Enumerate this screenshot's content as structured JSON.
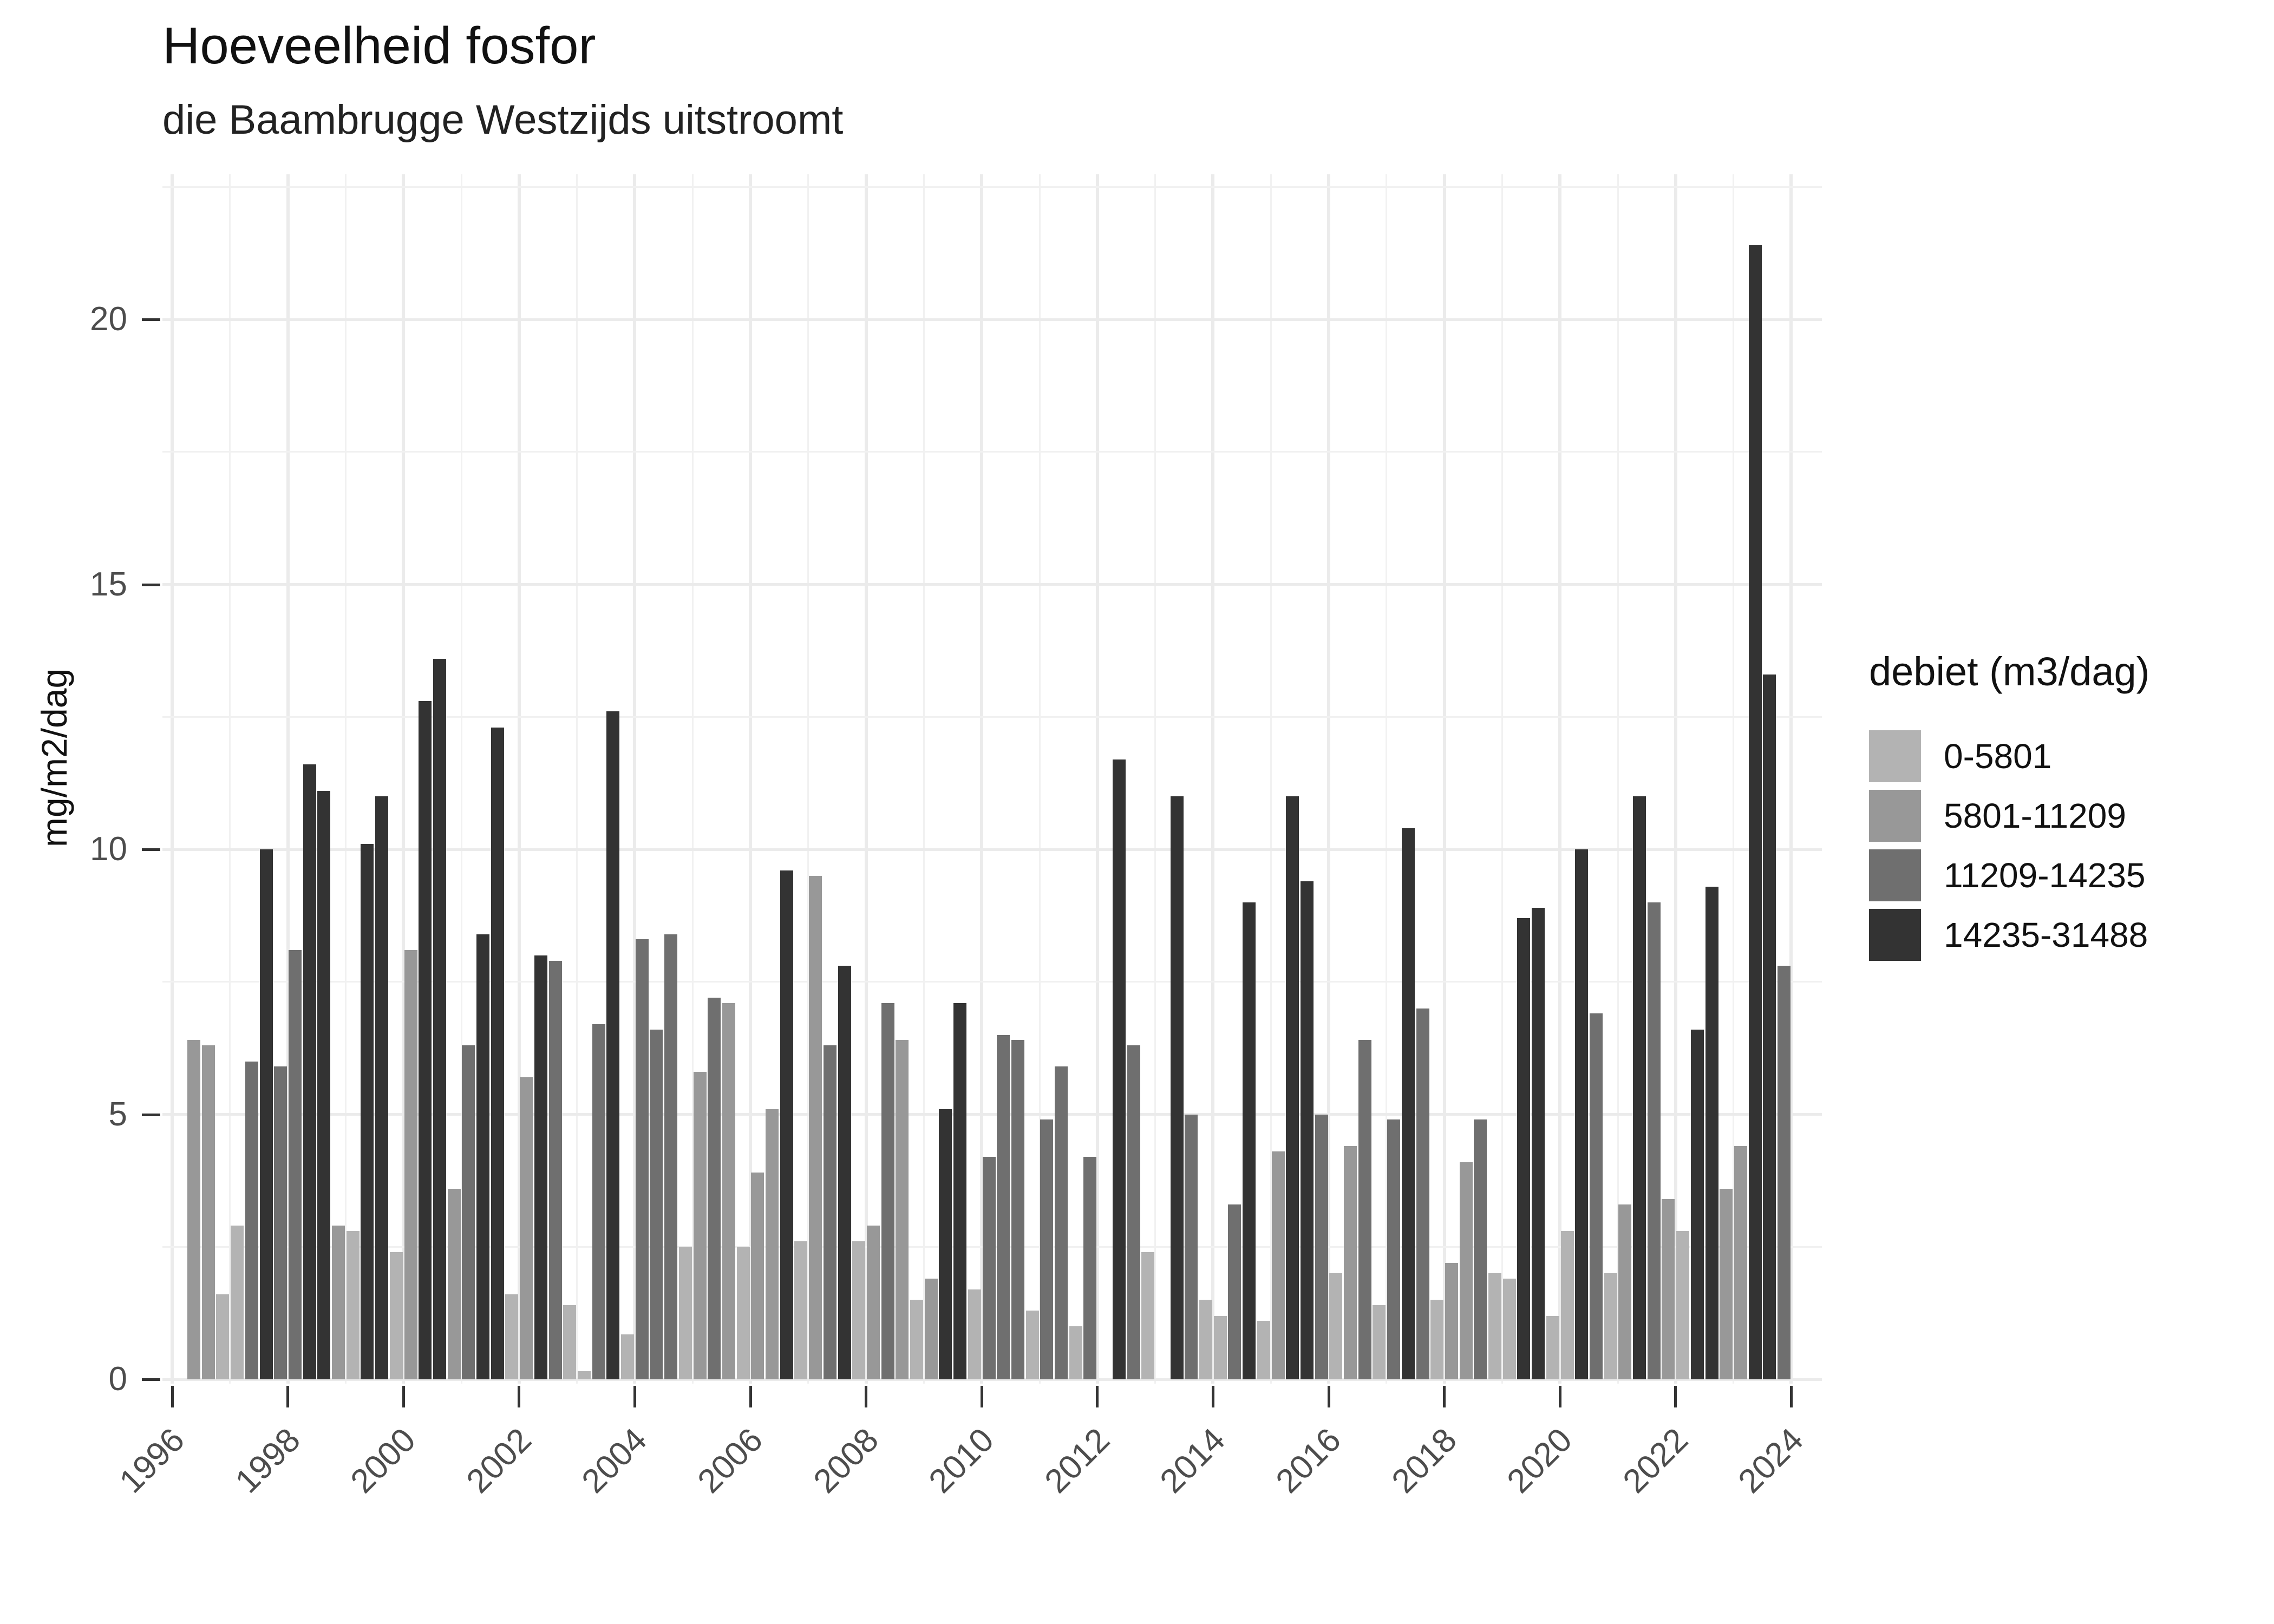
{
  "title": "Hoeveelheid fosfor",
  "subtitle": "die Baambrugge Westzijds uitstroomt",
  "y_axis_title": "mg/m2/dag",
  "legend": {
    "title": "debiet (m3/dag)",
    "position": "right",
    "items": [
      {
        "label": "0-5801",
        "color": "#b3b3b3"
      },
      {
        "label": "5801-11209",
        "color": "#989898"
      },
      {
        "label": "11209-14235",
        "color": "#6f6f6f"
      },
      {
        "label": "14235-31488",
        "color": "#333333"
      }
    ]
  },
  "chart_data": {
    "type": "bar",
    "title": "Hoeveelheid fosfor",
    "subtitle": "die Baambrugge Westzijds uitstroomt",
    "xlabel": "",
    "ylabel": "mg/m2/dag",
    "ylim": [
      0,
      22.7
    ],
    "yticks_major": [
      0,
      5,
      10,
      15,
      20
    ],
    "yticks_minor": [
      2.5,
      7.5,
      12.5,
      17.5,
      22.5
    ],
    "xtick_labels": [
      "1996",
      "1998",
      "2000",
      "2002",
      "2004",
      "2006",
      "2008",
      "2010",
      "2012",
      "2014",
      "2016",
      "2018",
      "2020",
      "2022",
      "2024"
    ],
    "grid": "on",
    "legend_title": "debiet (m3/dag)",
    "categories": [
      "0-5801",
      "5801-11209",
      "11209-14235",
      "14235-31488"
    ],
    "category_colors": [
      "#b3b3b3",
      "#989898",
      "#6f6f6f",
      "#333333"
    ],
    "value_unit": "mg/m2/dag",
    "note": "4 quarterly bars per year; c = index into categories (debiet class); null = missing quarter",
    "years": [
      {
        "year": 1996,
        "bars": [
          null,
          {
            "v": 6.4,
            "c": 1
          },
          {
            "v": 6.3,
            "c": 1
          },
          {
            "v": 1.6,
            "c": 0
          }
        ]
      },
      {
        "year": 1997,
        "bars": [
          {
            "v": 2.9,
            "c": 0
          },
          {
            "v": 6.0,
            "c": 2
          },
          {
            "v": 10.0,
            "c": 3
          },
          {
            "v": 5.9,
            "c": 2
          }
        ]
      },
      {
        "year": 1998,
        "bars": [
          {
            "v": 8.1,
            "c": 2
          },
          {
            "v": 11.6,
            "c": 3
          },
          {
            "v": 11.1,
            "c": 3
          },
          {
            "v": 2.9,
            "c": 1
          }
        ]
      },
      {
        "year": 1999,
        "bars": [
          {
            "v": 2.8,
            "c": 0
          },
          {
            "v": 10.1,
            "c": 3
          },
          {
            "v": 11.0,
            "c": 3
          },
          {
            "v": 2.4,
            "c": 0
          }
        ]
      },
      {
        "year": 2000,
        "bars": [
          {
            "v": 8.1,
            "c": 1
          },
          {
            "v": 12.8,
            "c": 3
          },
          {
            "v": 13.6,
            "c": 3
          },
          {
            "v": 3.6,
            "c": 1
          }
        ]
      },
      {
        "year": 2001,
        "bars": [
          {
            "v": 6.3,
            "c": 2
          },
          {
            "v": 8.4,
            "c": 3
          },
          {
            "v": 12.3,
            "c": 3
          },
          {
            "v": 1.6,
            "c": 0
          }
        ]
      },
      {
        "year": 2002,
        "bars": [
          {
            "v": 5.7,
            "c": 1
          },
          {
            "v": 8.0,
            "c": 3
          },
          {
            "v": 7.9,
            "c": 2
          },
          {
            "v": 1.4,
            "c": 0
          }
        ]
      },
      {
        "year": 2003,
        "bars": [
          {
            "v": 0.15,
            "c": 0
          },
          {
            "v": 6.7,
            "c": 2
          },
          {
            "v": 12.6,
            "c": 3
          },
          {
            "v": 0.85,
            "c": 0
          }
        ]
      },
      {
        "year": 2004,
        "bars": [
          {
            "v": 8.3,
            "c": 2
          },
          {
            "v": 6.6,
            "c": 2
          },
          {
            "v": 8.4,
            "c": 2
          },
          {
            "v": 2.5,
            "c": 0
          }
        ]
      },
      {
        "year": 2005,
        "bars": [
          {
            "v": 5.8,
            "c": 1
          },
          {
            "v": 7.2,
            "c": 2
          },
          {
            "v": 7.1,
            "c": 1
          },
          {
            "v": 2.5,
            "c": 0
          }
        ]
      },
      {
        "year": 2006,
        "bars": [
          {
            "v": 3.9,
            "c": 1
          },
          {
            "v": 5.1,
            "c": 1
          },
          {
            "v": 9.6,
            "c": 3
          },
          {
            "v": 2.6,
            "c": 0
          }
        ]
      },
      {
        "year": 2007,
        "bars": [
          {
            "v": 9.5,
            "c": 1
          },
          {
            "v": 6.3,
            "c": 2
          },
          {
            "v": 7.8,
            "c": 3
          },
          {
            "v": 2.6,
            "c": 0
          }
        ]
      },
      {
        "year": 2008,
        "bars": [
          {
            "v": 2.9,
            "c": 1
          },
          {
            "v": 7.1,
            "c": 2
          },
          {
            "v": 6.4,
            "c": 1
          },
          {
            "v": 1.5,
            "c": 0
          }
        ]
      },
      {
        "year": 2009,
        "bars": [
          {
            "v": 1.9,
            "c": 1
          },
          {
            "v": 5.1,
            "c": 3
          },
          {
            "v": 7.1,
            "c": 3
          },
          {
            "v": 1.7,
            "c": 0
          }
        ]
      },
      {
        "year": 2010,
        "bars": [
          {
            "v": 4.2,
            "c": 2
          },
          {
            "v": 6.5,
            "c": 2
          },
          {
            "v": 6.4,
            "c": 2
          },
          {
            "v": 1.3,
            "c": 0
          }
        ]
      },
      {
        "year": 2011,
        "bars": [
          {
            "v": 4.9,
            "c": 2
          },
          {
            "v": 5.9,
            "c": 2
          },
          {
            "v": 1.0,
            "c": 0
          },
          {
            "v": 4.2,
            "c": 2
          }
        ]
      },
      {
        "year": 2012,
        "bars": [
          null,
          {
            "v": 11.7,
            "c": 3
          },
          {
            "v": 6.3,
            "c": 2
          },
          {
            "v": 2.4,
            "c": 0
          }
        ]
      },
      {
        "year": 2013,
        "bars": [
          null,
          {
            "v": 11.0,
            "c": 3
          },
          {
            "v": 5.0,
            "c": 2
          },
          {
            "v": 1.5,
            "c": 0
          }
        ]
      },
      {
        "year": 2014,
        "bars": [
          {
            "v": 1.2,
            "c": 0
          },
          {
            "v": 3.3,
            "c": 2
          },
          {
            "v": 9.0,
            "c": 3
          },
          {
            "v": 1.1,
            "c": 0
          }
        ]
      },
      {
        "year": 2015,
        "bars": [
          {
            "v": 4.3,
            "c": 1
          },
          {
            "v": 11.0,
            "c": 3
          },
          {
            "v": 9.4,
            "c": 3
          },
          {
            "v": 5.0,
            "c": 2
          }
        ]
      },
      {
        "year": 2016,
        "bars": [
          {
            "v": 2.0,
            "c": 0
          },
          {
            "v": 4.4,
            "c": 1
          },
          {
            "v": 6.4,
            "c": 2
          },
          {
            "v": 1.4,
            "c": 0
          }
        ]
      },
      {
        "year": 2017,
        "bars": [
          {
            "v": 4.9,
            "c": 2
          },
          {
            "v": 10.4,
            "c": 3
          },
          {
            "v": 7.0,
            "c": 2
          },
          {
            "v": 1.5,
            "c": 0
          }
        ]
      },
      {
        "year": 2018,
        "bars": [
          {
            "v": 2.2,
            "c": 1
          },
          {
            "v": 4.1,
            "c": 1
          },
          {
            "v": 4.9,
            "c": 2
          },
          {
            "v": 2.0,
            "c": 0
          }
        ]
      },
      {
        "year": 2019,
        "bars": [
          {
            "v": 1.9,
            "c": 0
          },
          {
            "v": 8.7,
            "c": 3
          },
          {
            "v": 8.9,
            "c": 3
          },
          {
            "v": 1.2,
            "c": 0
          }
        ]
      },
      {
        "year": 2020,
        "bars": [
          {
            "v": 2.8,
            "c": 0
          },
          {
            "v": 10.0,
            "c": 3
          },
          {
            "v": 6.9,
            "c": 2
          },
          {
            "v": 2.0,
            "c": 0
          }
        ]
      },
      {
        "year": 2021,
        "bars": [
          {
            "v": 3.3,
            "c": 1
          },
          {
            "v": 11.0,
            "c": 3
          },
          {
            "v": 9.0,
            "c": 2
          },
          {
            "v": 3.4,
            "c": 1
          }
        ]
      },
      {
        "year": 2022,
        "bars": [
          {
            "v": 2.8,
            "c": 0
          },
          {
            "v": 6.6,
            "c": 3
          },
          {
            "v": 9.3,
            "c": 3
          },
          {
            "v": 3.6,
            "c": 1
          }
        ]
      },
      {
        "year": 2023,
        "bars": [
          {
            "v": 4.4,
            "c": 1
          },
          {
            "v": 21.4,
            "c": 3
          },
          {
            "v": 13.3,
            "c": 3
          },
          {
            "v": 7.8,
            "c": 2
          }
        ]
      }
    ]
  }
}
